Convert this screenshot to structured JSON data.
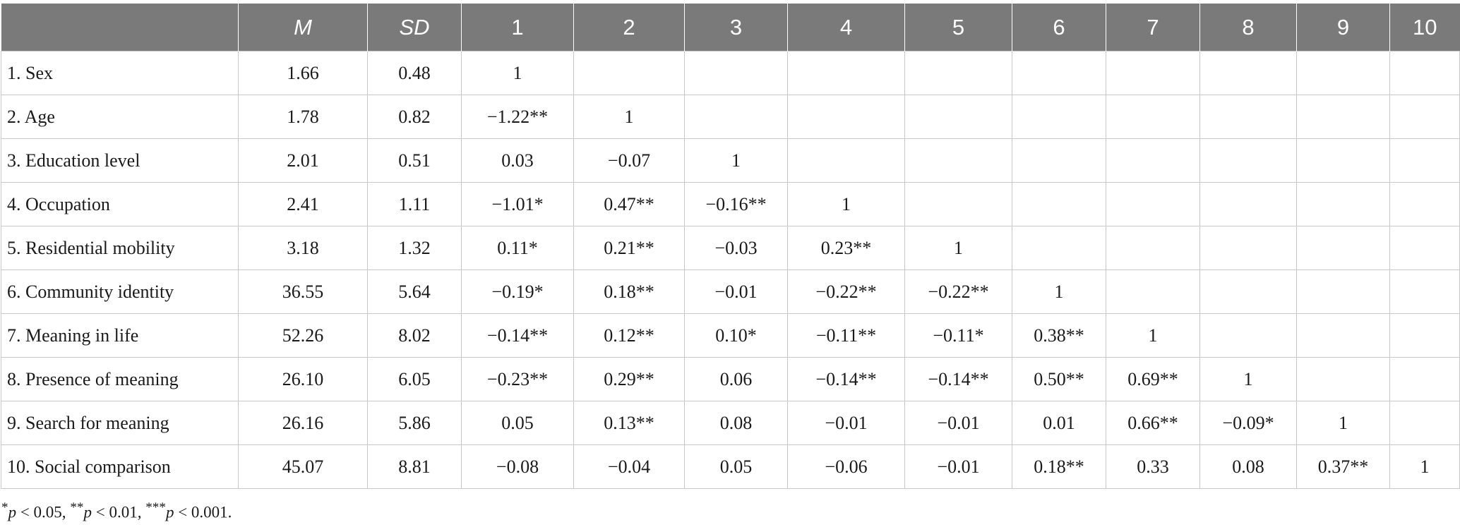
{
  "table": {
    "headers": [
      "",
      "M",
      "SD",
      "1",
      "2",
      "3",
      "4",
      "5",
      "6",
      "7",
      "8",
      "9",
      "10"
    ],
    "rows": [
      [
        "1.  Sex",
        "1.66",
        "0.48",
        "1",
        "",
        "",
        "",
        "",
        "",
        "",
        "",
        "",
        ""
      ],
      [
        "2.  Age",
        "1.78",
        "0.82",
        "−1.22**",
        "1",
        "",
        "",
        "",
        "",
        "",
        "",
        "",
        ""
      ],
      [
        "3.  Education level",
        "2.01",
        "0.51",
        "0.03",
        "−0.07",
        "1",
        "",
        "",
        "",
        "",
        "",
        "",
        ""
      ],
      [
        "4.  Occupation",
        "2.41",
        "1.11",
        "−1.01*",
        "0.47**",
        "−0.16**",
        "1",
        "",
        "",
        "",
        "",
        "",
        ""
      ],
      [
        "5.  Residential mobility",
        "3.18",
        "1.32",
        "0.11*",
        "0.21**",
        "−0.03",
        "0.23**",
        "1",
        "",
        "",
        "",
        "",
        ""
      ],
      [
        "6.  Community identity",
        "36.55",
        "5.64",
        "−0.19*",
        "0.18**",
        "−0.01",
        "−0.22**",
        "−0.22**",
        "1",
        "",
        "",
        "",
        ""
      ],
      [
        "7.  Meaning in life",
        "52.26",
        "8.02",
        "−0.14**",
        "0.12**",
        "0.10*",
        "−0.11**",
        "−0.11*",
        "0.38**",
        "1",
        "",
        "",
        ""
      ],
      [
        "8.  Presence of meaning",
        "26.10",
        "6.05",
        "−0.23**",
        "0.29**",
        "0.06",
        "−0.14**",
        "−0.14**",
        "0.50**",
        "0.69**",
        "1",
        "",
        ""
      ],
      [
        "9.  Search for meaning",
        "26.16",
        "5.86",
        "0.05",
        "0.13**",
        "0.08",
        "−0.01",
        "−0.01",
        "0.01",
        "0.66**",
        "−0.09*",
        "1",
        ""
      ],
      [
        "10.  Social comparison",
        "45.07",
        "8.81",
        "−0.08",
        "−0.04",
        "0.05",
        "−0.06",
        "−0.01",
        "0.18**",
        "0.33",
        "0.08",
        "0.37**",
        "1"
      ]
    ]
  },
  "note": {
    "p1_sym": "*",
    "p1_rest": " < 0.05, ",
    "p2_sym": "**",
    "p2_rest": " < 0.01, ",
    "p3_sym": "***",
    "p3_rest": " < 0.001.",
    "p_letter": "p"
  }
}
